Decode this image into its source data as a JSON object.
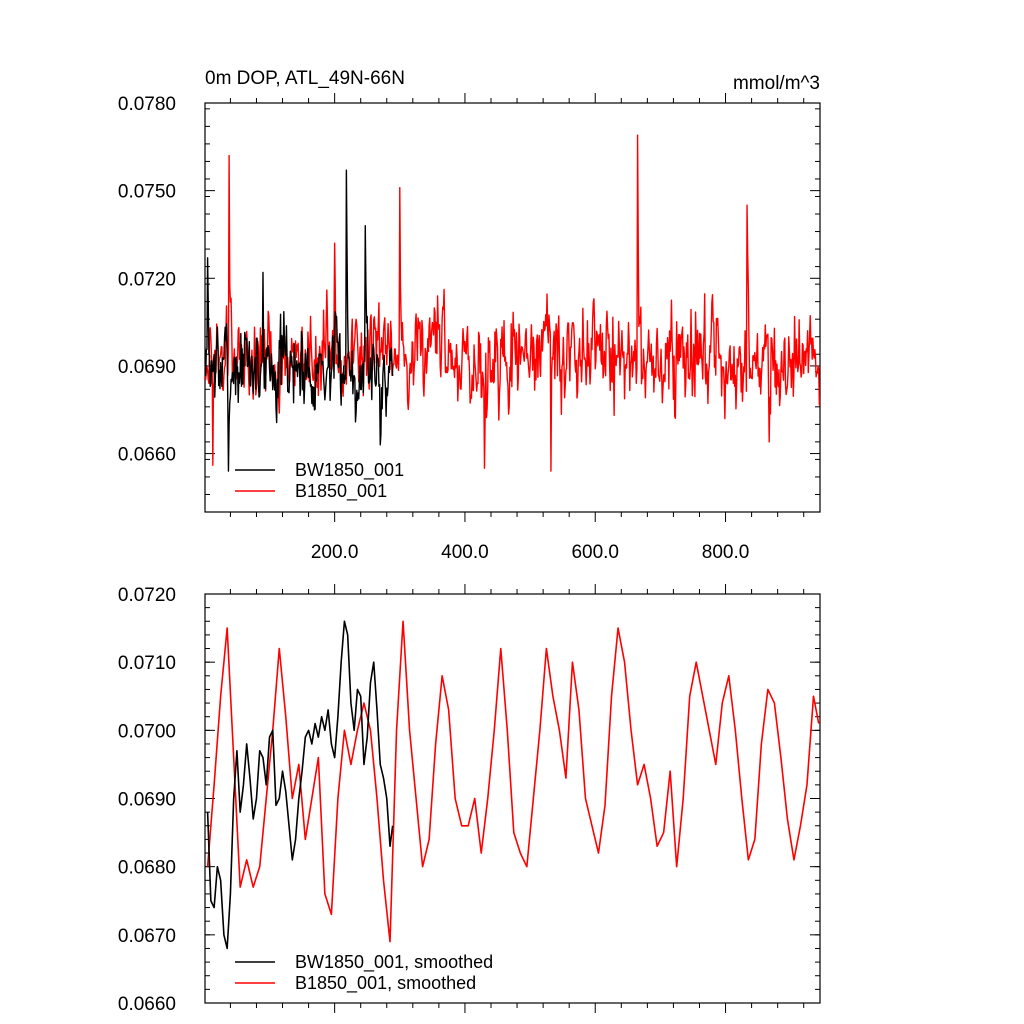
{
  "chart_data": [
    {
      "type": "line",
      "title": "0m DOP, ATL_49N-66N",
      "units_label": "mmol/m^3",
      "xlim": [
        1,
        945
      ],
      "ylim": [
        0.064,
        0.078
      ],
      "x_ticks": [
        200,
        400,
        600,
        800
      ],
      "x_tick_labels": [
        "200.0",
        "400.0",
        "600.0",
        "800.0"
      ],
      "y_ticks": [
        0.066,
        0.069,
        0.072,
        0.075,
        0.078
      ],
      "y_tick_labels": [
        "0.0660",
        "0.0690",
        "0.0720",
        "0.0750",
        "0.0780"
      ],
      "legend_position": "bottom-left",
      "series": [
        {
          "name": "BW1850_001",
          "color": "#000000",
          "x_start": 1,
          "x_end": 289,
          "mean": 0.069,
          "noise": 0.00115,
          "seed": 7,
          "extremes": [
            [
              5,
              0.0727
            ],
            [
              37,
              0.0654
            ],
            [
              90,
              0.0722
            ],
            [
              218,
              0.0757
            ],
            [
              247,
              0.0738
            ],
            [
              270,
              0.0663
            ]
          ]
        },
        {
          "name": "B1850_001",
          "color": "#ff0000",
          "x_start": 1,
          "x_end": 945,
          "mean": 0.0693,
          "noise": 0.00125,
          "seed": 19,
          "extremes": [
            [
              38,
              0.0762
            ],
            [
              13,
              0.0656
            ],
            [
              200,
              0.0732
            ],
            [
              300,
              0.0751
            ],
            [
              430,
              0.0655
            ],
            [
              532,
              0.0654
            ],
            [
              665,
              0.0769
            ],
            [
              867,
              0.0664
            ],
            [
              833,
              0.0745
            ]
          ]
        }
      ]
    },
    {
      "type": "line",
      "title": "",
      "xlim": [
        1,
        945
      ],
      "ylim": [
        0.066,
        0.072
      ],
      "x_ticks": [
        200,
        400,
        600,
        800
      ],
      "x_tick_labels": [],
      "y_ticks": [
        0.066,
        0.067,
        0.068,
        0.069,
        0.07,
        0.071,
        0.072
      ],
      "y_tick_labels": [
        "0.0660",
        "0.0670",
        "0.0680",
        "0.0690",
        "0.0700",
        "0.0710",
        "0.0720"
      ],
      "legend_position": "bottom-left",
      "series": [
        {
          "name": "BW1850_001, smoothed",
          "color": "#000000",
          "x": [
            5,
            10,
            15,
            20,
            25,
            30,
            35,
            40,
            45,
            50,
            55,
            60,
            65,
            70,
            75,
            80,
            85,
            90,
            95,
            100,
            105,
            110,
            115,
            120,
            125,
            130,
            135,
            140,
            145,
            150,
            155,
            160,
            165,
            170,
            175,
            180,
            185,
            190,
            195,
            200,
            205,
            210,
            215,
            220,
            225,
            230,
            235,
            240,
            245,
            250,
            255,
            260,
            265,
            270,
            275,
            280,
            285,
            289
          ],
          "y": [
            0.0688,
            0.0675,
            0.0674,
            0.068,
            0.0678,
            0.067,
            0.0668,
            0.0676,
            0.069,
            0.0697,
            0.0688,
            0.0692,
            0.0698,
            0.0693,
            0.0687,
            0.069,
            0.0697,
            0.0696,
            0.0692,
            0.0699,
            0.07,
            0.0689,
            0.069,
            0.0694,
            0.0691,
            0.0686,
            0.0681,
            0.0684,
            0.069,
            0.0694,
            0.0699,
            0.07,
            0.0698,
            0.0701,
            0.0699,
            0.0702,
            0.07,
            0.0703,
            0.0698,
            0.0696,
            0.0702,
            0.071,
            0.0716,
            0.0714,
            0.0704,
            0.07,
            0.0706,
            0.0705,
            0.0695,
            0.0699,
            0.0707,
            0.071,
            0.0703,
            0.0695,
            0.0693,
            0.069,
            0.0683,
            0.0686
          ]
        },
        {
          "name": "B1850_001, smoothed",
          "color": "#ff0000",
          "x": [
            5,
            15,
            25,
            35,
            45,
            55,
            65,
            75,
            85,
            95,
            105,
            115,
            125,
            135,
            145,
            155,
            165,
            175,
            185,
            195,
            205,
            215,
            225,
            235,
            245,
            255,
            265,
            275,
            285,
            295,
            305,
            315,
            325,
            335,
            345,
            355,
            365,
            375,
            385,
            395,
            405,
            415,
            425,
            435,
            445,
            455,
            465,
            475,
            485,
            495,
            505,
            515,
            525,
            535,
            545,
            555,
            565,
            575,
            585,
            595,
            605,
            615,
            625,
            635,
            645,
            655,
            665,
            675,
            685,
            695,
            705,
            715,
            725,
            735,
            745,
            755,
            765,
            775,
            785,
            795,
            805,
            815,
            825,
            835,
            845,
            855,
            865,
            875,
            885,
            895,
            905,
            915,
            925,
            935,
            943
          ],
          "y": [
            0.068,
            0.0692,
            0.0705,
            0.0715,
            0.0696,
            0.0677,
            0.0681,
            0.0677,
            0.068,
            0.069,
            0.07,
            0.0712,
            0.0702,
            0.069,
            0.0695,
            0.0684,
            0.069,
            0.0696,
            0.0676,
            0.0673,
            0.069,
            0.07,
            0.0695,
            0.07,
            0.0704,
            0.07,
            0.069,
            0.0678,
            0.0669,
            0.07,
            0.0716,
            0.07,
            0.069,
            0.068,
            0.0684,
            0.0698,
            0.0708,
            0.0703,
            0.069,
            0.0686,
            0.0686,
            0.069,
            0.0682,
            0.069,
            0.07,
            0.0712,
            0.07,
            0.0685,
            0.0682,
            0.068,
            0.069,
            0.07,
            0.0712,
            0.0705,
            0.07,
            0.0693,
            0.071,
            0.0703,
            0.069,
            0.0686,
            0.0682,
            0.0689,
            0.0705,
            0.0715,
            0.071,
            0.07,
            0.0692,
            0.0695,
            0.069,
            0.0683,
            0.0685,
            0.0694,
            0.068,
            0.069,
            0.0705,
            0.071,
            0.0705,
            0.07,
            0.0695,
            0.0704,
            0.0708,
            0.07,
            0.069,
            0.0681,
            0.0684,
            0.0698,
            0.0706,
            0.0704,
            0.0696,
            0.0687,
            0.0681,
            0.0686,
            0.0692,
            0.0705,
            0.0701
          ]
        }
      ]
    }
  ]
}
